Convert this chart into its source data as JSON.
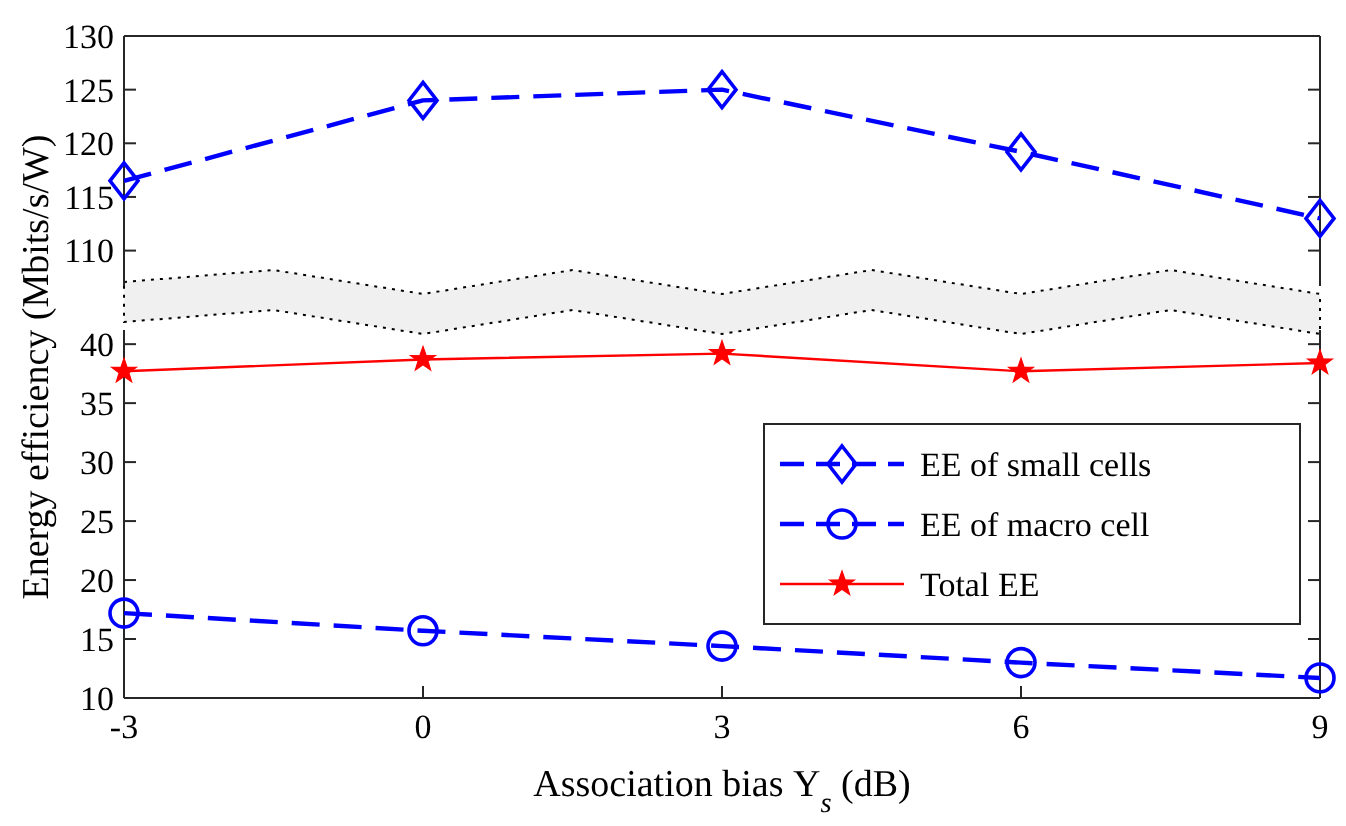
{
  "chart_data": [
    {
      "type": "line",
      "x": [
        -3,
        0,
        3,
        6,
        9
      ],
      "xlim": [
        -3,
        9
      ],
      "ylim": [
        106.7,
        130
      ],
      "yticks": [
        110,
        115,
        120,
        125,
        130
      ],
      "tick_labels": "y",
      "grid": false,
      "series": [
        {
          "name": "EE of small cells",
          "color": "#0000ff",
          "values": [
            116.5,
            124,
            125,
            119.2,
            113
          ],
          "marker": "diamond",
          "line_style": "dashed"
        }
      ]
    },
    {
      "type": "line",
      "x": [
        -3,
        0,
        3,
        6,
        9
      ],
      "xlim": [
        -3,
        9
      ],
      "xticks": [
        -3,
        0,
        3,
        6,
        9
      ],
      "ylim": [
        10,
        41.2
      ],
      "yticks": [
        10,
        15,
        20,
        25,
        30,
        35,
        40
      ],
      "grid": false,
      "legend": "right",
      "xlabel": "Association bias Υ$_{s}$ (dB)",
      "ylabel": "Energy efficiency (Mbits/s/W)",
      "series": [
        {
          "name": "EE of macro cell",
          "color": "#0000ff",
          "values": [
            17.2,
            15.7,
            14.4,
            13.0,
            11.7
          ],
          "marker": "circle",
          "line_style": "dashed"
        },
        {
          "name": "Total EE",
          "color": "#ff0000",
          "values": [
            37.7,
            38.7,
            39.2,
            37.7,
            38.4
          ],
          "marker": "star",
          "line_style": "solid"
        }
      ]
    }
  ]
}
